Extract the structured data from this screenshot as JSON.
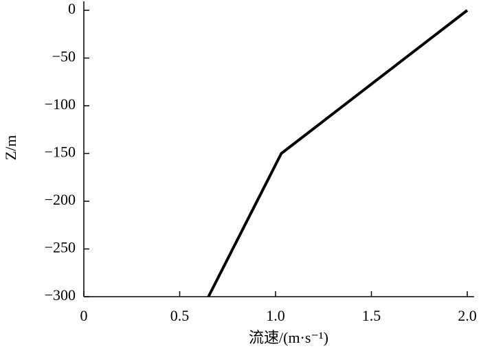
{
  "chart_data": {
    "type": "line",
    "xlabel": "流速/(m·s⁻¹)",
    "ylabel": "Z/m",
    "x": [
      0.65,
      1.03,
      2.0
    ],
    "series": [
      {
        "color": "#000000",
        "values": [
          -300,
          -150,
          0
        ]
      }
    ],
    "xlim": [
      0,
      2.0
    ],
    "xticks": [
      0,
      0.5,
      {
        "value": 1.0,
        "label": "1.0"
      },
      {
        "value": 1.5,
        "label": "1.5"
      },
      {
        "value": 2.0,
        "label": "2.0"
      }
    ],
    "ylim": [
      -300,
      0
    ],
    "yticks": [
      0,
      {
        "value": -50,
        "label": "−50"
      },
      {
        "value": -100,
        "label": "−100"
      },
      {
        "value": -150,
        "label": "−150"
      },
      {
        "value": -200,
        "label": "−200"
      },
      {
        "value": -250,
        "label": "−250"
      },
      {
        "value": -300,
        "label": "−300"
      }
    ]
  }
}
